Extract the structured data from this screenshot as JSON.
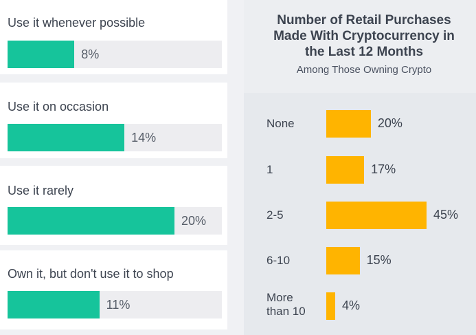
{
  "left_panel": {
    "items": [
      {
        "label": "Use it whenever possible",
        "value": 8,
        "value_label": "8%"
      },
      {
        "label": "Use it on occasion",
        "value": 14,
        "value_label": "14%"
      },
      {
        "label": "Use it rarely",
        "value": 20,
        "value_label": "20%"
      },
      {
        "label": "Own it, but don't use it to shop",
        "value": 11,
        "value_label": "11%"
      }
    ],
    "bar_color": "#16c49b"
  },
  "chart_data": {
    "type": "bar",
    "orientation": "horizontal",
    "title_lines": [
      "Number of Retail Purchases",
      "Made With Cryptocurrency in",
      "the Last 12 Months"
    ],
    "title": "Number of Retail Purchases Made With Cryptocurrency in the Last 12 Months",
    "subtitle": "Among Those Owning Crypto",
    "categories": [
      [
        "None"
      ],
      [
        "1"
      ],
      [
        "2-5"
      ],
      [
        "6-10"
      ],
      [
        "More",
        "than 10"
      ]
    ],
    "values": [
      20,
      17,
      45,
      15,
      4
    ],
    "value_labels": [
      "20%",
      "17%",
      "45%",
      "15%",
      "4%"
    ],
    "xlim": [
      0,
      100
    ],
    "unit": "%",
    "bar_color": "#ffb400"
  }
}
